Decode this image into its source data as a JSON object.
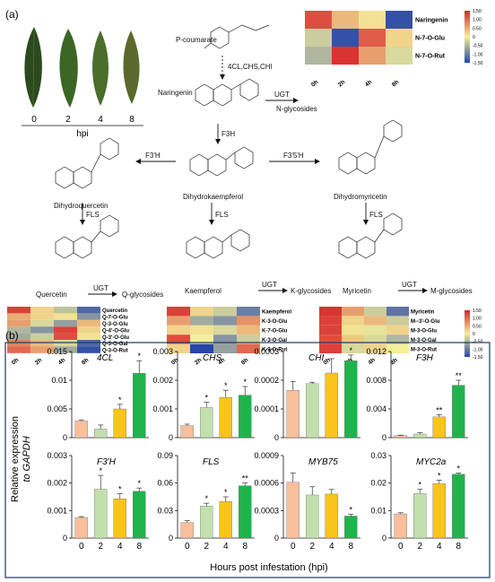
{
  "panel_a": {
    "label": "(a)",
    "leaves": {
      "times": [
        "0",
        "2",
        "4",
        "8"
      ],
      "unit": "hpi"
    },
    "pathway": {
      "p_coumarate": "P-coumarate",
      "enzymes_top": "4CL,CHS,CHI",
      "naringenin": "Naringenin",
      "ugt_top": "UGT",
      "n_glycosides": "N-glycosides",
      "f3h": "F3H",
      "f3p": "F3'H",
      "f35": "F3'5'H",
      "dihydroquercetin": "Dihydroquercetin",
      "dihydrokaempferol": "Dihydrokaempferol",
      "dihydromyricetin": "Dihydromyricetin",
      "fls": "FLS",
      "quercetin": "Quercetin",
      "kaempferol_mol": "Kaempferol",
      "myricetin_mol": "Myricetin",
      "ugt": "UGT",
      "q_glycosides": "Q-glycosides",
      "k_glycosides": "K-glycosides",
      "m_glycosides": "M-glycosides"
    },
    "heatmaps": [
      {
        "rows": [
          "Naringenin",
          "N-7-O-Glu",
          "N-7-O-Rut"
        ],
        "cols": [
          "0h",
          "2h",
          "4h",
          "8h"
        ],
        "values": [
          [
            1.2,
            0.4,
            0.1,
            -1.4
          ],
          [
            -0.3,
            -1.4,
            1.1,
            0.2
          ],
          [
            -0.5,
            1.4,
            0.6,
            -0.2
          ]
        ]
      },
      {
        "rows": [
          "Quercetin",
          "Q-7-O-Glu",
          "Q-3-O-Glu",
          "Q-4'-O-Glu",
          "Q-3'-O-Glu",
          "Q-3-O-Gal",
          "Q-3-O-Rut"
        ],
        "cols": [
          "0h",
          "2h",
          "4h",
          "8h"
        ],
        "values": [
          [
            1.3,
            0.2,
            -0.4,
            -1.2
          ],
          [
            0.5,
            0.2,
            0.1,
            -0.8
          ],
          [
            0.6,
            -0.2,
            -0.7,
            0.4
          ],
          [
            -0.5,
            -0.8,
            1.3,
            0.2
          ],
          [
            -0.6,
            -0.3,
            1.2,
            0.1
          ],
          [
            0.8,
            0.4,
            -0.2,
            -1.2
          ],
          [
            1.0,
            0.6,
            -0.6,
            -1.4
          ]
        ]
      },
      {
        "rows": [
          "Kaempferol",
          "K-3-O-Glu",
          "K-7-O-Glu",
          "K-3-O-Gal",
          "K-3-O-Rut"
        ],
        "cols": [
          "0h",
          "2h",
          "4h",
          "8h"
        ],
        "values": [
          [
            1.3,
            0.2,
            -0.3,
            -1.0
          ],
          [
            0.6,
            -0.6,
            -0.8,
            0.7
          ],
          [
            0.2,
            0.1,
            -0.2,
            0.4
          ],
          [
            1.2,
            0.0,
            -0.8,
            -0.3
          ],
          [
            0.2,
            -1.5,
            -0.7,
            1.0
          ]
        ]
      },
      {
        "rows": [
          "Myricetin",
          "M--3'-O-Glu",
          "M-3-O-Glu",
          "M-3-O-Gal",
          "M-3-O-Rut"
        ],
        "cols": [
          "0h",
          "2h",
          "4h",
          "8h"
        ],
        "values": [
          [
            1.4,
            0.6,
            -0.3,
            -1.1
          ],
          [
            1.3,
            0.2,
            0.4,
            -0.3
          ],
          [
            1.3,
            0.1,
            -0.1,
            0.2
          ],
          [
            1.2,
            0.3,
            -0.2,
            -0.5
          ],
          [
            1.3,
            -0.2,
            0.2,
            0.0
          ]
        ]
      }
    ],
    "colorbar_ticks": [
      "1.50",
      "1.00",
      "0.50",
      "0",
      "-0.50",
      "-1.00",
      "-1.50"
    ]
  },
  "panel_b": {
    "label": "(b)",
    "ylabel_line1": "Relative expression",
    "ylabel_line2": "to GAPDH",
    "xlabel": "Hours post infestation (hpi)",
    "bar_colors": [
      "#f7bf9b",
      "#c2dfae",
      "#f9c41b",
      "#22b24c"
    ]
  },
  "chart_data": [
    {
      "type": "bar",
      "title": "4CL",
      "categories": [
        "0",
        "2",
        "4",
        "8"
      ],
      "values": [
        0.0029,
        0.0015,
        0.005,
        0.0112
      ],
      "errors": [
        0.0002,
        0.0007,
        0.0008,
        0.0022
      ],
      "sig": [
        "",
        "",
        "*",
        "*"
      ],
      "ylim": [
        0,
        0.015
      ],
      "yticks": [
        "0",
        "0.005",
        "0.01",
        "0.015"
      ],
      "show_xticks": false
    },
    {
      "type": "bar",
      "title": "CHS",
      "categories": [
        "0",
        "2",
        "4",
        "8"
      ],
      "values": [
        0.00042,
        0.00105,
        0.0014,
        0.00148
      ],
      "errors": [
        5e-05,
        0.00018,
        0.00025,
        0.0003
      ],
      "sig": [
        "",
        "*",
        "*",
        "*"
      ],
      "ylim": [
        0,
        0.003
      ],
      "yticks": [
        "0",
        "0.001",
        "0.002",
        "0.003"
      ],
      "show_xticks": false
    },
    {
      "type": "bar",
      "title": "CHI",
      "categories": [
        "0",
        "2",
        "4",
        "8"
      ],
      "values": [
        0.000165,
        0.000188,
        0.000225,
        0.000268
      ],
      "errors": [
        3e-05,
        5e-06,
        5e-05,
        2e-05
      ],
      "sig": [
        "",
        "",
        "",
        "*"
      ],
      "ylim": [
        0,
        0.0003
      ],
      "yticks": [
        "0",
        "0.0001",
        "0.0002",
        "0.0003"
      ],
      "show_xticks": false
    },
    {
      "type": "bar",
      "title": "F3H",
      "categories": [
        "0",
        "2",
        "4",
        "8"
      ],
      "values": [
        0.0003,
        0.0005,
        0.0029,
        0.0073
      ],
      "errors": [
        5e-05,
        0.0002,
        0.0003,
        0.0007
      ],
      "sig": [
        "",
        "",
        "**",
        "**"
      ],
      "ylim": [
        0,
        0.012
      ],
      "yticks": [
        "0",
        "0.004",
        "0.008",
        "0.012"
      ],
      "show_xticks": false
    },
    {
      "type": "bar",
      "title": "F3'H",
      "categories": [
        "0",
        "2",
        "4",
        "8"
      ],
      "values": [
        0.00075,
        0.00178,
        0.00143,
        0.0017
      ],
      "errors": [
        3e-05,
        0.0005,
        0.00018,
        0.00012
      ],
      "sig": [
        "",
        "*",
        "*",
        "*"
      ],
      "ylim": [
        0,
        0.003
      ],
      "yticks": [
        "0",
        "0.001",
        "0.002",
        "0.003"
      ],
      "show_xticks": true
    },
    {
      "type": "bar",
      "title": "FLS",
      "categories": [
        "0",
        "2",
        "4",
        "8"
      ],
      "values": [
        0.017,
        0.035,
        0.04,
        0.057
      ],
      "errors": [
        0.002,
        0.003,
        0.005,
        0.003
      ],
      "sig": [
        "",
        "*",
        "*",
        "**"
      ],
      "ylim": [
        0,
        0.09
      ],
      "yticks": [
        "0",
        "0.03",
        "0.06",
        "0.09"
      ],
      "show_xticks": true
    },
    {
      "type": "bar",
      "title": "MYB75",
      "categories": [
        "0",
        "2",
        "4",
        "8"
      ],
      "values": [
        0.00061,
        0.00047,
        0.00048,
        0.00024
      ],
      "errors": [
        0.0001,
        9e-05,
        5e-05,
        2e-05
      ],
      "sig": [
        "",
        "",
        "",
        "*"
      ],
      "ylim": [
        0,
        0.0009
      ],
      "yticks": [
        "0",
        "0.0003",
        "0.0006",
        "0.0009"
      ],
      "show_xticks": true
    },
    {
      "type": "bar",
      "title": "MYC2a",
      "categories": [
        "0",
        "2",
        "4",
        "8"
      ],
      "values": [
        0.0088,
        0.0162,
        0.0198,
        0.0232
      ],
      "errors": [
        0.0004,
        0.0015,
        0.0012,
        0.0004
      ],
      "sig": [
        "",
        "*",
        "*",
        "*"
      ],
      "ylim": [
        0,
        0.03
      ],
      "yticks": [
        "0",
        "0.01",
        "0.02",
        "0.03"
      ],
      "show_xticks": true
    }
  ]
}
